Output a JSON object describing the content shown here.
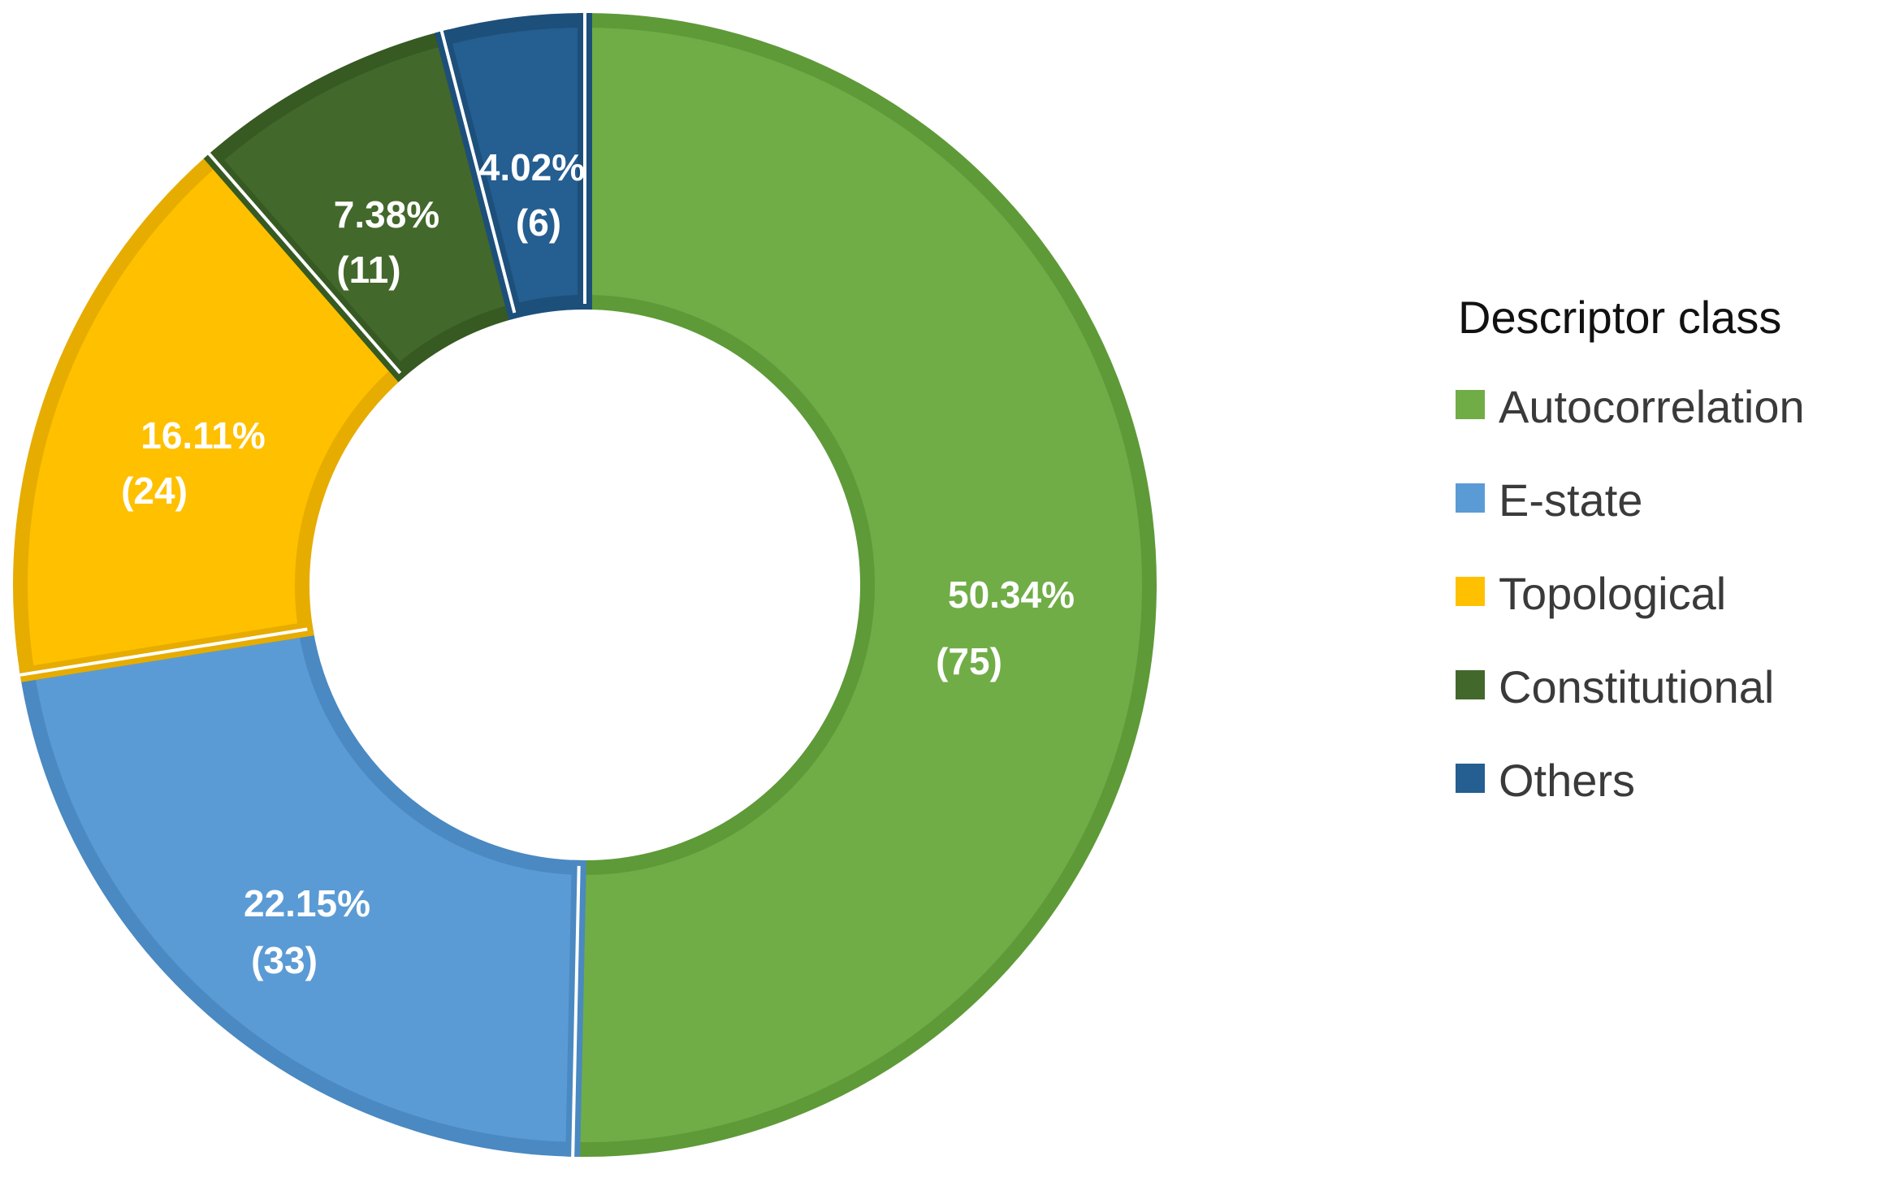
{
  "chart_data": {
    "type": "pie",
    "variant": "donut",
    "legend_title": "Descriptor class",
    "legend_position": "right",
    "slices": [
      {
        "name": "Autocorrelation",
        "value": 75,
        "percent_label": "50.34%",
        "count_label": "(75)",
        "color": "#70AD47",
        "border": "#5E9A38"
      },
      {
        "name": "E-state",
        "value": 33,
        "percent_label": "22.15%",
        "count_label": "(33)",
        "color": "#5B9BD5",
        "border": "#4A89C2"
      },
      {
        "name": "Topological",
        "value": 24,
        "percent_label": "16.11%",
        "count_label": "(24)",
        "color": "#FFC000",
        "border": "#E6AC00"
      },
      {
        "name": "Constitutional",
        "value": 11,
        "percent_label": "7.38%",
        "count_label": "(11)",
        "color": "#43682B",
        "border": "#365A22"
      },
      {
        "name": "Others",
        "value": 6,
        "percent_label": "4.02%",
        "count_label": "(6)",
        "color": "#255E91",
        "border": "#1D4F7B"
      }
    ]
  }
}
